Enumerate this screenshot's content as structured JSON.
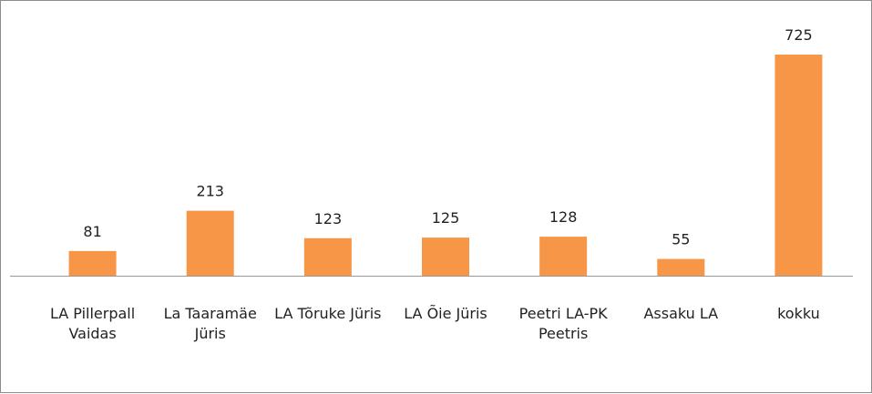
{
  "chart_data": {
    "type": "bar",
    "categories": [
      "LA Pillerpall Vaidas",
      "La Taaramäe Jüris",
      "LA Tõruke Jüris",
      "LA Õie Jüris",
      "Peetri LA-PK Peetris",
      "Assaku LA",
      "kokku"
    ],
    "values": [
      81,
      213,
      123,
      125,
      128,
      55,
      725
    ],
    "color": "#f79646"
  }
}
